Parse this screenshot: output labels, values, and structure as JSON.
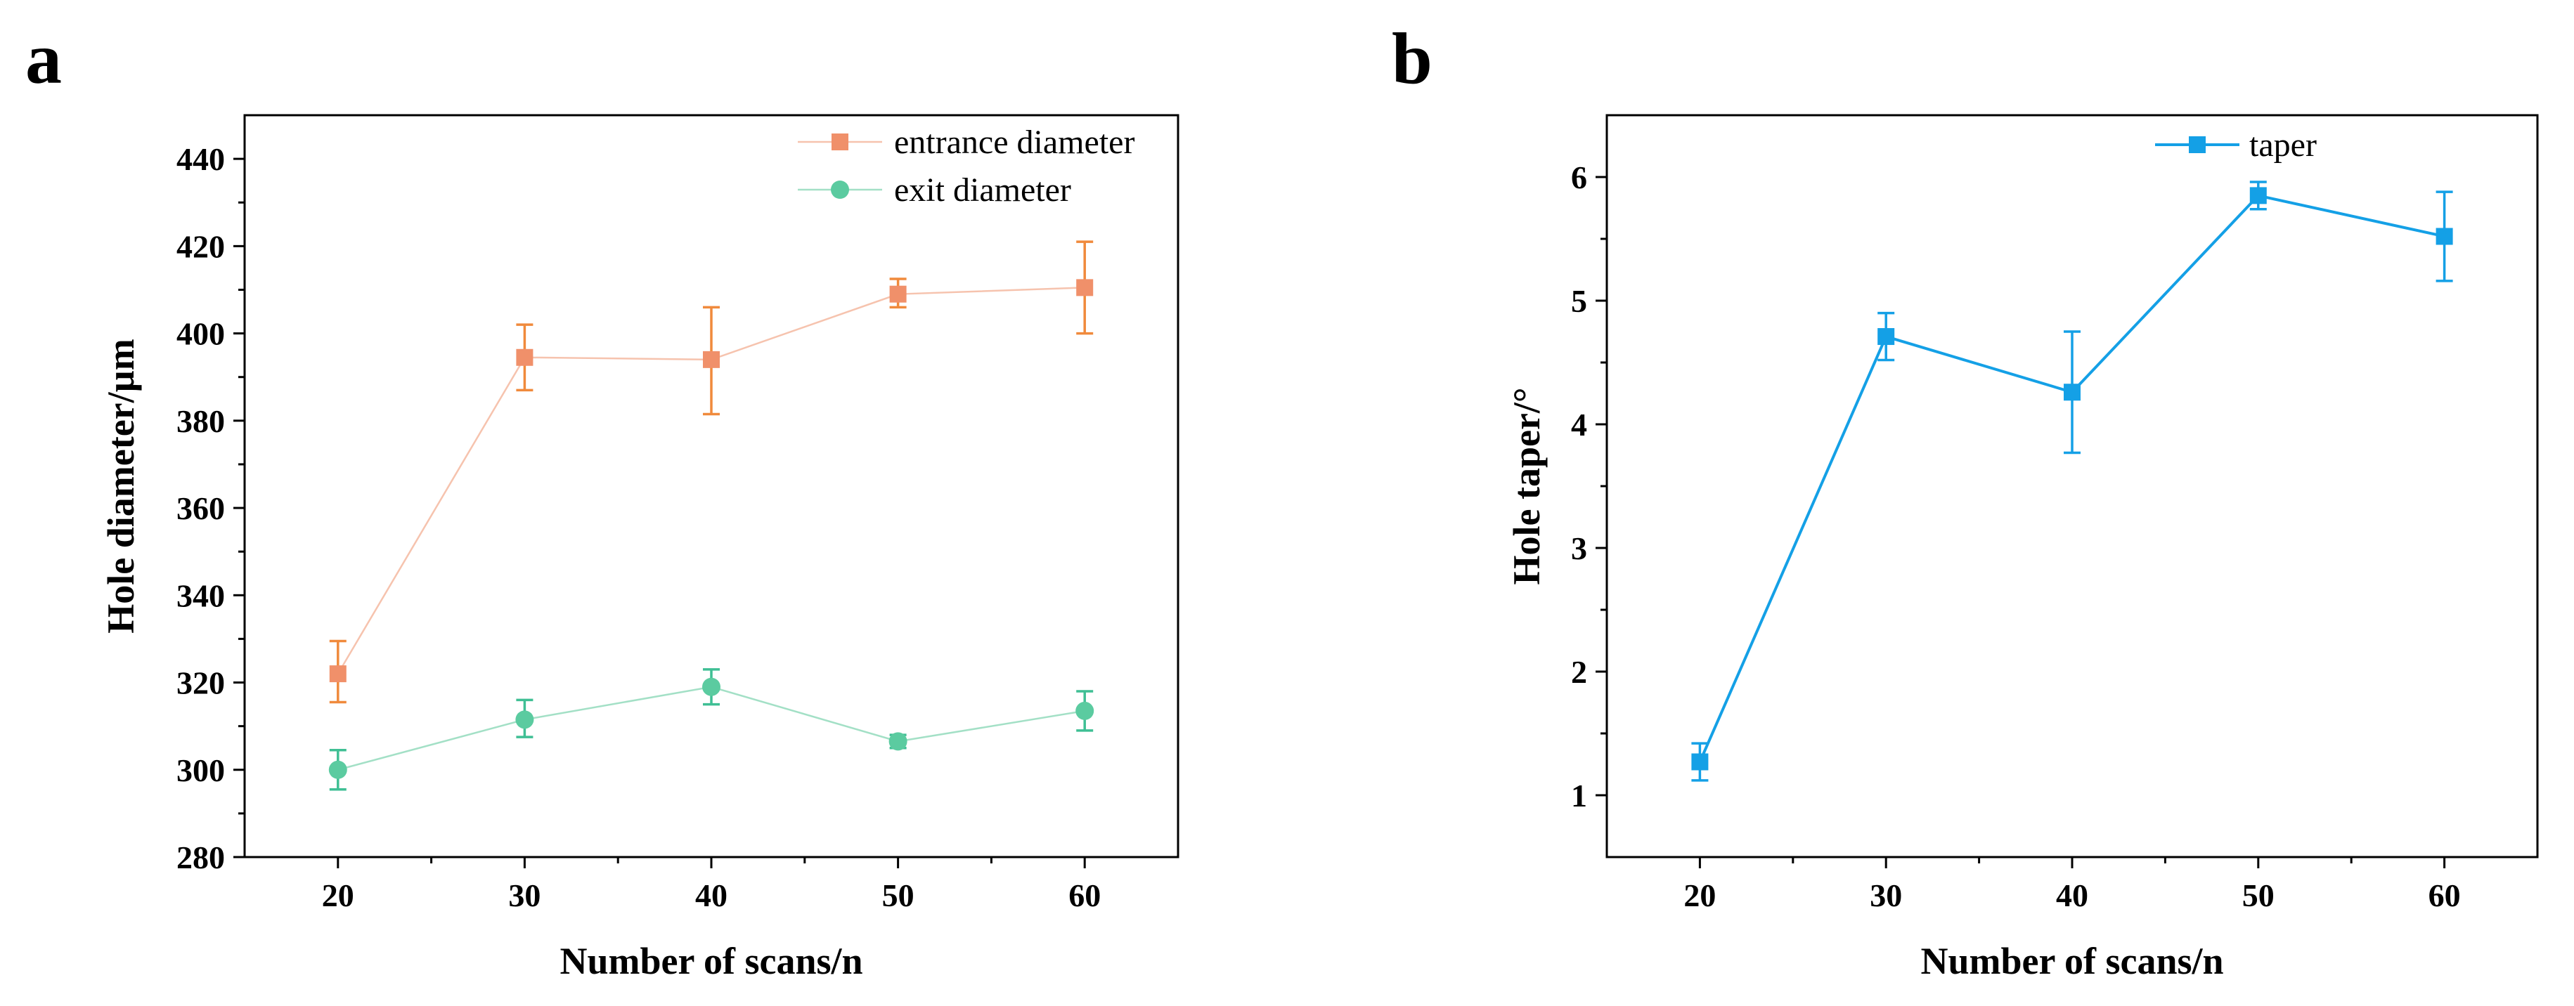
{
  "chart_data": [
    {
      "panel_label": "a",
      "type": "line",
      "title": "",
      "xlabel": "Number of scans/n",
      "ylabel": "Hole diameter/µm",
      "categories": [
        20,
        30,
        40,
        50,
        60
      ],
      "xlim": [
        15,
        65
      ],
      "ylim": [
        280,
        450
      ],
      "x_ticks": [
        20,
        30,
        40,
        50,
        60
      ],
      "y_ticks": [
        280,
        300,
        320,
        340,
        360,
        380,
        400,
        420,
        440
      ],
      "legend_position": "top-right",
      "grid": false,
      "series": [
        {
          "name": "entrance diameter",
          "marker": "square",
          "color": "#f0906a",
          "line_color": "#f6c3ae",
          "error_color": "#f08a3c",
          "x": [
            20,
            30,
            40,
            50,
            60
          ],
          "values": [
            322,
            394.5,
            394,
            409,
            410.5
          ],
          "error_upper": [
            329.5,
            402,
            406,
            412.5,
            421
          ],
          "error_lower": [
            315.5,
            387,
            381.5,
            406,
            400
          ]
        },
        {
          "name": "exit diameter",
          "marker": "circle",
          "color": "#5bcba0",
          "line_color": "#a3e0c6",
          "error_color": "#3fbf94",
          "x": [
            20,
            30,
            40,
            50,
            60
          ],
          "values": [
            300,
            311.5,
            319,
            306.5,
            313.5
          ],
          "error_upper": [
            304.5,
            316,
            323,
            308,
            318
          ],
          "error_lower": [
            295.5,
            307.5,
            315,
            305,
            309
          ]
        }
      ]
    },
    {
      "panel_label": "b",
      "type": "line",
      "title": "",
      "xlabel": "Number of scans/n",
      "ylabel": "Hole taper/°",
      "categories": [
        20,
        30,
        40,
        50,
        60
      ],
      "xlim": [
        15,
        65
      ],
      "ylim": [
        0.5,
        6.5
      ],
      "x_ticks": [
        20,
        30,
        40,
        50,
        60
      ],
      "y_ticks": [
        1,
        2,
        3,
        4,
        5,
        6
      ],
      "legend_position": "top-right",
      "grid": false,
      "series": [
        {
          "name": "taper",
          "marker": "square",
          "color": "#14a0e6",
          "line_color": "#14a0e6",
          "error_color": "#14a0e6",
          "x": [
            20,
            30,
            40,
            50,
            60
          ],
          "values": [
            1.27,
            4.71,
            4.26,
            5.85,
            5.52
          ],
          "error_upper": [
            1.42,
            4.9,
            4.75,
            5.96,
            5.88
          ],
          "error_lower": [
            1.12,
            4.52,
            3.77,
            5.74,
            5.16
          ]
        }
      ]
    }
  ]
}
